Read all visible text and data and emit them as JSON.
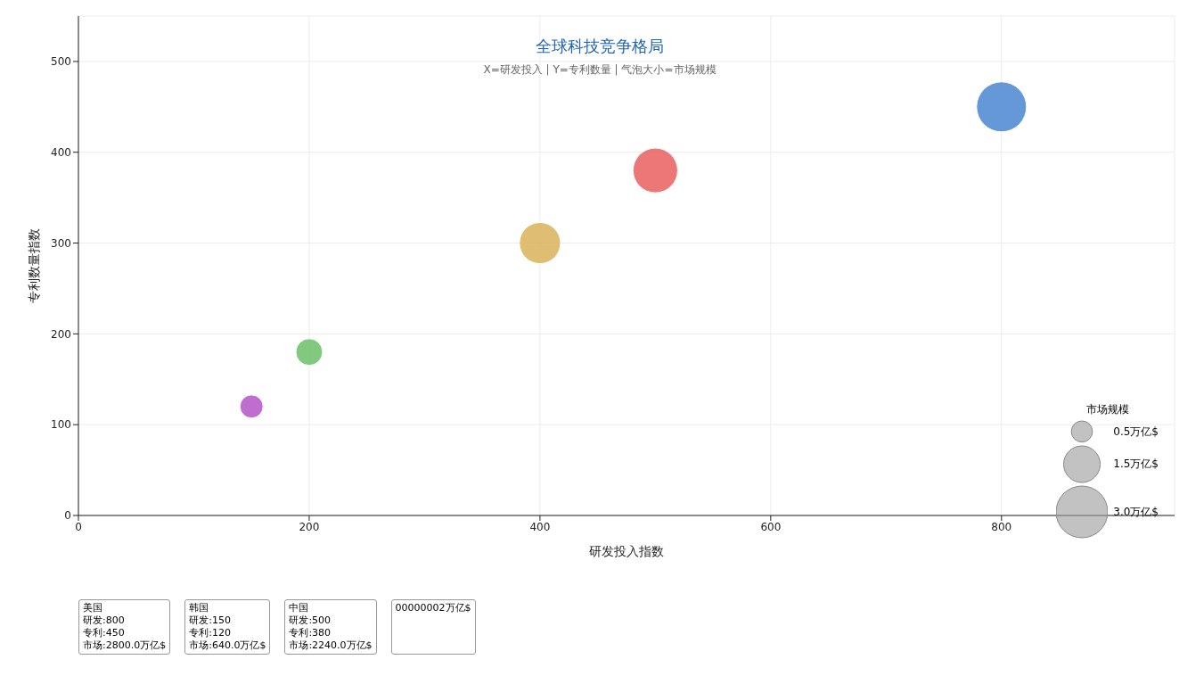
{
  "chart_data": {
    "type": "bubble",
    "title": "全球科技竞争格局",
    "subtitle": "X=研发投入 | Y=专利数量 | 气泡大小=市场规模",
    "xlabel": "研发投入指数",
    "ylabel": "专利数量指数",
    "legend_title": "市场规模",
    "x": [
      800,
      500,
      400,
      200,
      150
    ],
    "values": [
      450,
      380,
      300,
      180,
      120
    ],
    "sizes": [
      2.8,
      2.24,
      1.9,
      0.8,
      0.6
    ],
    "colors": [
      "#4a86d0",
      "#e8605e",
      "#d9b35a",
      "#6abf69",
      "#b455c8"
    ],
    "size_legend": [
      {
        "value": 0.5,
        "label": "0.5万亿$"
      },
      {
        "value": 1.5,
        "label": "1.5万亿$"
      },
      {
        "value": 3.0,
        "label": "3.0万亿$"
      }
    ],
    "xlim": [
      0,
      950
    ],
    "xticks": [
      0,
      200,
      400,
      600,
      800
    ],
    "ylim": [
      0,
      550
    ],
    "yticks": [
      0,
      100,
      200,
      300,
      400,
      500
    ],
    "grid": true,
    "annotations": [
      "美国",
      "研发:800",
      "专利:450",
      "市场:2800.0万亿$",
      "韩国",
      "研发:150",
      "专利:120",
      "市场:640.0万亿$",
      "中国",
      "研发:500",
      "专利:380",
      "市场:2240.0万亿$",
      "00000002万亿$"
    ]
  }
}
